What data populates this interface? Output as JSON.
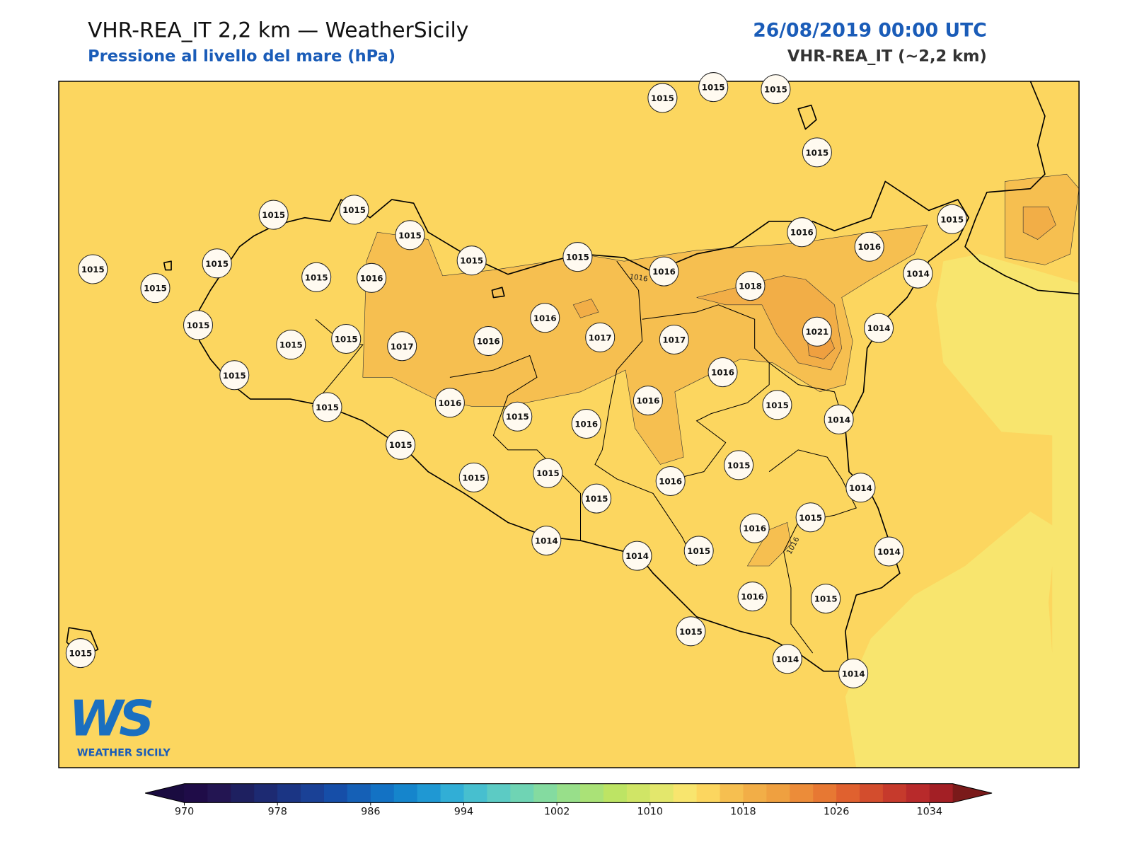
{
  "header": {
    "title": "VHR-REA_IT 2,2 km — WeatherSicily",
    "subtitle": "Pressione al livello del mare (hPa)",
    "datetime": "26/08/2019 00:00 UTC",
    "model": "VHR-REA_IT (~2,2 km)"
  },
  "stations": [
    1015,
    1015,
    1015,
    1015,
    1015,
    1015,
    1015,
    1015,
    1015,
    1016,
    1016,
    1015,
    1014,
    1015,
    1015,
    1015,
    1015,
    1016,
    1016,
    1018,
    1016,
    1021,
    1014,
    1015,
    1015,
    1015,
    1017,
    1016,
    1017,
    1017,
    1015,
    1016,
    1016,
    1015,
    1014,
    1015,
    1016,
    1015,
    1016,
    1015,
    1015,
    1015,
    1015,
    1016,
    1015,
    1014,
    1015,
    1016,
    1014,
    1014,
    1015,
    1014,
    1016,
    1015,
    1015,
    1014,
    1014,
    1015
  ],
  "contour_labels": [
    1016,
    1016
  ],
  "colorbar": {
    "clim": [
      970,
      1036
    ],
    "ticks": [
      970,
      978,
      986,
      994,
      1002,
      1010,
      1018,
      1026,
      1034
    ],
    "colors": [
      "#1f0c48",
      "#231552",
      "#1e2060",
      "#1d2a72",
      "#1b3584",
      "#1a4196",
      "#164ea8",
      "#1560b6",
      "#1372c4",
      "#1585cc",
      "#1f98d3",
      "#31aed6",
      "#47bfcf",
      "#5ccbc4",
      "#6fd4b4",
      "#84dba0",
      "#98df8a",
      "#aae277",
      "#bde464",
      "#d0e566",
      "#e3e76c",
      "#f8e56e",
      "#fcd65f",
      "#f6bf50",
      "#f2ae47",
      "#efa040",
      "#ec8c39",
      "#e77833",
      "#e0612f",
      "#d34d2d",
      "#c63a2c",
      "#b82a2b",
      "#a31f25"
    ],
    "under_color": "#1a0b40",
    "over_color": "#7a1a1a"
  },
  "logo": {
    "mark": "WS",
    "name": "WEATHER SICILY"
  }
}
